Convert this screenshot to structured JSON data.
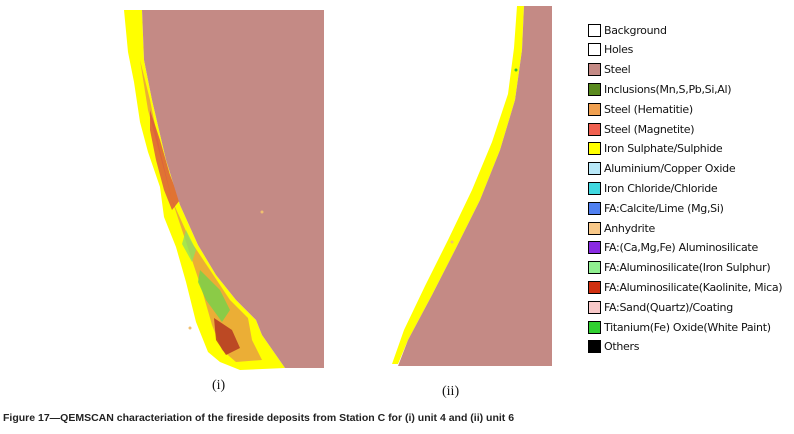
{
  "figure": {
    "panels": [
      {
        "label": "(i)"
      },
      {
        "label": "(ii)"
      }
    ],
    "legend": [
      {
        "label": "Background",
        "color": "#ffffff"
      },
      {
        "label": "Holes",
        "color": "#ffffff"
      },
      {
        "label": "Steel",
        "color": "#c48a85"
      },
      {
        "label": "Inclusions(Mn,S,Pb,Si,Al)",
        "color": "#5a8a1e"
      },
      {
        "label": "Steel (Hematitie)",
        "color": "#f0a050"
      },
      {
        "label": "Steel (Magnetite)",
        "color": "#f06050"
      },
      {
        "label": "Iron Sulphate/Sulphide",
        "color": "#ffff00"
      },
      {
        "label": "Aluminium/Copper Oxide",
        "color": "#b8e8f8"
      },
      {
        "label": "Iron Chloride/Chloride",
        "color": "#40d8e0"
      },
      {
        "label": "FA:Calcite/Lime (Mg,Si)",
        "color": "#5080f0"
      },
      {
        "label": "Anhydrite",
        "color": "#f8c888"
      },
      {
        "label": "FA:(Ca,Mg,Fe) Aluminosilicate",
        "color": "#8a2be2"
      },
      {
        "label": "FA:Aluminosilicate(Iron Sulphur)",
        "color": "#90f090"
      },
      {
        "label": "FA:Aluminosilicate(Kaolinite, Mica)",
        "color": "#d03010"
      },
      {
        "label": "FA:Sand(Quartz)/Coating",
        "color": "#f8c8c8"
      },
      {
        "label": "Titanium(Fe) Oxide(White Paint)",
        "color": "#30d030"
      },
      {
        "label": "Others",
        "color": "#000000"
      }
    ],
    "caption": "Figure 17—QEMSCAN characteriation of the fireside deposits from Station C for (i) unit 4 and (ii) unit 6"
  }
}
